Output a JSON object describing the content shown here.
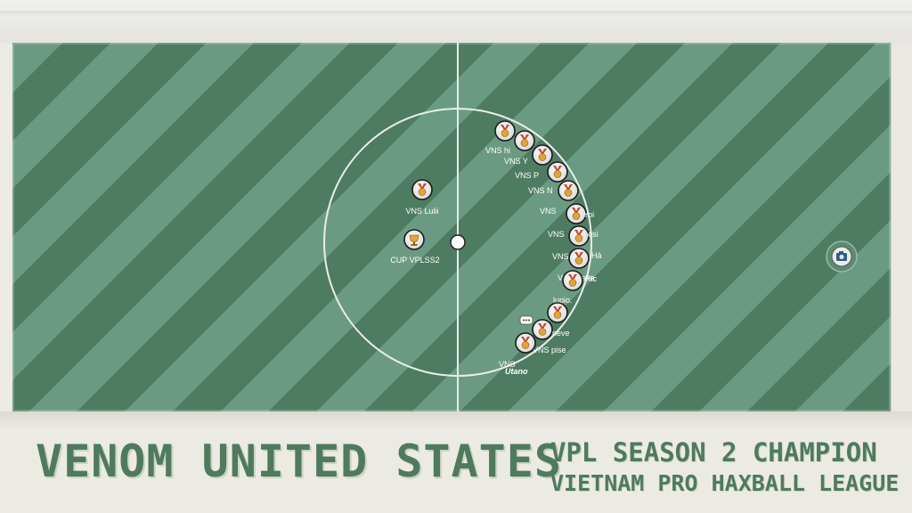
{
  "banner": {
    "team_name": "VENOM UNITED STATES",
    "subtitle_line1": "VPL SEASON 2 CHAMPION",
    "subtitle_line2": "VIETNAM PRO HAXBALL LEAGUE"
  },
  "players_left": [
    {
      "label": "VNS Lulii",
      "avatar": "medal-icon"
    },
    {
      "label": "CUP VPLSS2",
      "avatar": "trophy-icon"
    }
  ],
  "players_arc": [
    {
      "label": "VNS hi",
      "avatar": "medal-icon"
    },
    {
      "label": "VNS Y",
      "avatar": "medal-icon"
    },
    {
      "label": "VNS P",
      "avatar": "medal-icon"
    },
    {
      "label": "VNS N",
      "avatar": "medal-icon"
    },
    {
      "label": "VNS",
      "avatar": "medal-icon"
    },
    {
      "label": "VNS",
      "avatar": "medal-icon"
    },
    {
      "label": "VNS",
      "avatar": "medal-icon"
    },
    {
      "label": "VNS Kaka",
      "avatar": "medal-icon"
    },
    {
      "label": "lupio.",
      "avatar": "medal-icon"
    },
    {
      "label": "sky neve",
      "avatar": "medal-icon"
    },
    {
      "label": "VNS pise",
      "avatar": "medal-icon"
    },
    {
      "label": "VNS",
      "avatar": "medal-icon"
    }
  ],
  "arc_fragments": [
    "Yoi",
    "esi",
    "Hả",
    "Ric",
    "Utano"
  ],
  "colors": {
    "pitch_dark": "#4e7c62",
    "pitch_light": "#6b9a82",
    "banner_text": "#4f7a5e",
    "medal_gold": "#e3a336",
    "medal_red": "#c9462d"
  },
  "icons": [
    "camera-icon",
    "chat-bubble-icon"
  ]
}
